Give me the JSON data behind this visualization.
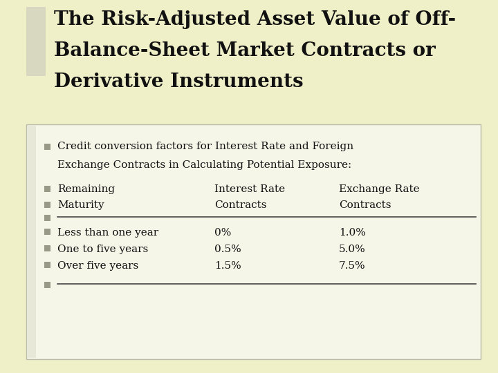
{
  "title_line1": "The Risk-Adjusted Asset Value of Off-",
  "title_line2": "Balance-Sheet Market Contracts or",
  "title_line3": "Derivative Instruments",
  "bg_outer": "#f0f0c8",
  "bg_title": "#f0f0c8",
  "bg_content": "#f5f5e8",
  "title_color": "#111111",
  "left_bar_title_color": "#d8d8c0",
  "left_bar_content_color": "#e8e8d8",
  "bullet_color": "#999988",
  "text_color": "#111111",
  "separator_color": "#444444",
  "line1": "Credit conversion factors for Interest Rate and Foreign",
  "line2": "Exchange Contracts in Calculating Potential Exposure:",
  "col_header_row1_c1": "Remaining",
  "col_header_row1_c2": "Interest Rate",
  "col_header_row1_c3": "Exchange Rate",
  "col_header_row2_c1": "Maturity",
  "col_header_row2_c2": "Contracts",
  "col_header_row2_c3": "Contracts",
  "data_rows": [
    [
      "Less than one year",
      "0%",
      "1.0%"
    ],
    [
      "One to five years",
      "0.5%",
      "5.0%"
    ],
    [
      "Over five years",
      "1.5%",
      "7.5%"
    ]
  ]
}
